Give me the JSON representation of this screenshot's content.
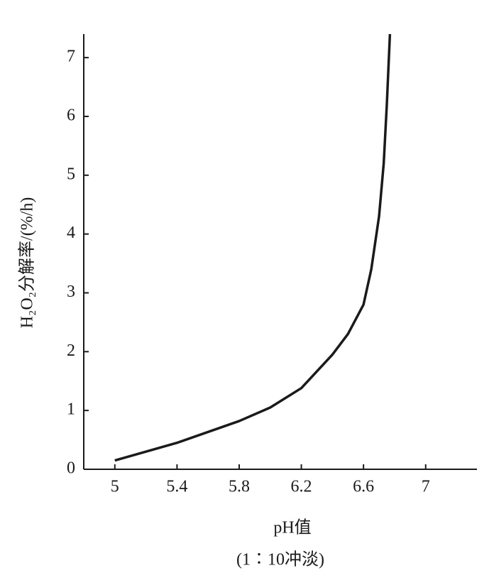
{
  "chart_data": {
    "type": "line",
    "ylabel": "H₂O₂分解率/(%/h)",
    "xlabel": [
      "pH值",
      "(1∶10冲淡)"
    ],
    "x": [
      5.0,
      5.4,
      5.8,
      6.0,
      6.2,
      6.4,
      6.5,
      6.6,
      6.65,
      6.7,
      6.73,
      6.75,
      6.77
    ],
    "series": [
      {
        "color": "#1a1a1a",
        "values": [
          0.15,
          0.45,
          0.82,
          1.05,
          1.38,
          1.95,
          2.3,
          2.8,
          3.4,
          4.3,
          5.2,
          6.2,
          7.4
        ]
      }
    ],
    "xlim": [
      4.8,
      7.33
    ],
    "xticks": [
      5,
      5.4,
      5.8,
      6.2,
      6.6,
      7
    ],
    "ylim": [
      0,
      7.4
    ],
    "yticks": [
      0,
      1,
      2,
      3,
      4,
      5,
      6,
      7
    ]
  }
}
